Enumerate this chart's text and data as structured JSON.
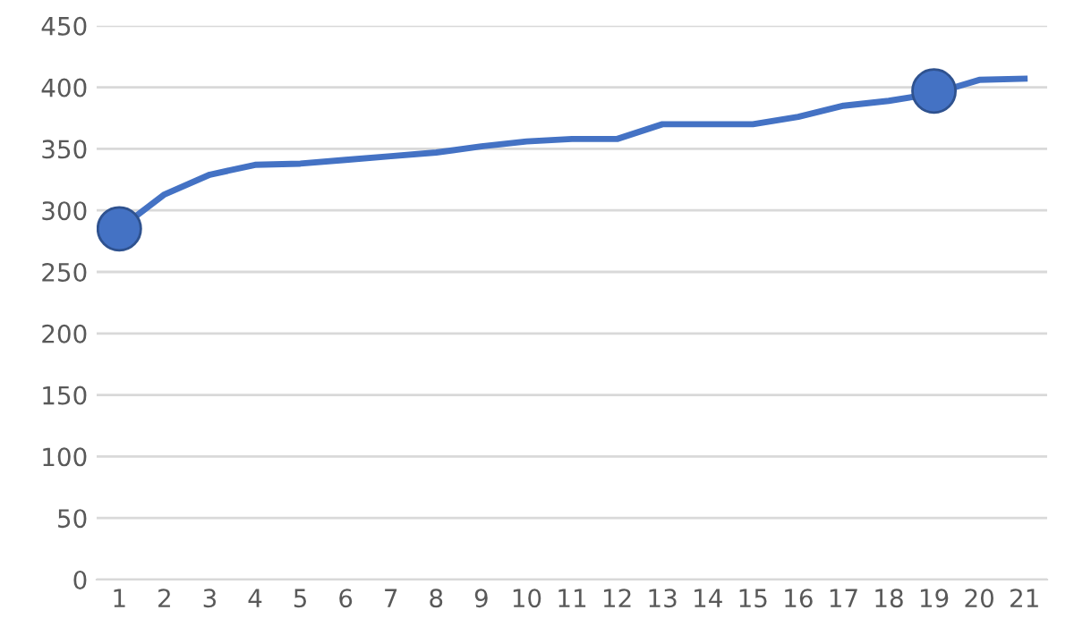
{
  "chart_data": {
    "type": "line",
    "categories": [
      "1",
      "2",
      "3",
      "4",
      "5",
      "6",
      "7",
      "8",
      "9",
      "10",
      "11",
      "12",
      "13",
      "14",
      "15",
      "16",
      "17",
      "18",
      "19",
      "20",
      "21"
    ],
    "series": [
      {
        "color": "#4472c4",
        "marker": "none",
        "values": [
          285,
          313,
          329,
          337,
          338,
          341,
          344,
          347,
          352,
          356,
          358,
          358,
          370,
          370,
          370,
          376,
          385,
          389,
          395,
          406,
          407
        ]
      },
      {
        "type": "scatter",
        "color": "#4472c4",
        "marker": "circle",
        "x": [
          "1",
          "19"
        ],
        "values": [
          285,
          397
        ]
      }
    ],
    "ylim": [
      0,
      450
    ],
    "yticks": [
      0,
      50,
      100,
      150,
      200,
      250,
      300,
      350,
      400,
      450
    ],
    "grid": "y"
  }
}
